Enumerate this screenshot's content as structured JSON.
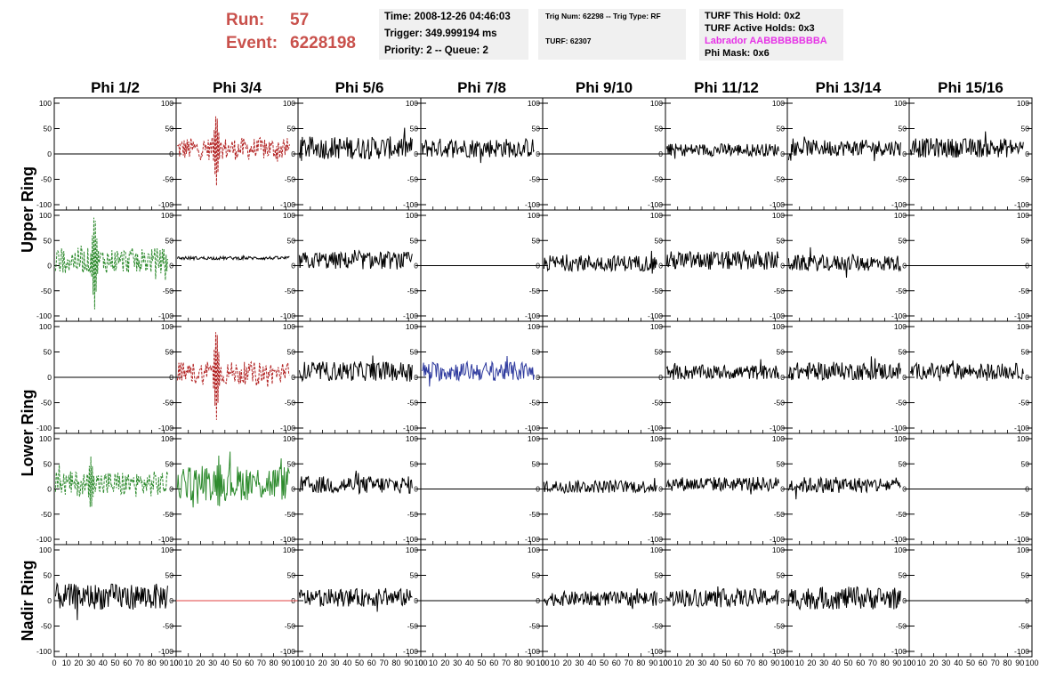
{
  "header": {
    "run_label": "Run:",
    "run_value": "57",
    "event_label": "Event:",
    "event_value": "6228198",
    "time": "Time: 2008-12-26 04:46:03",
    "trigger": "Trigger: 349.999194 ms",
    "priority": "Priority: 2 -- Queue: 2",
    "trig_num": "Trig Num: 62298 -- Trig Type: RF",
    "turf": "TURF: 62307",
    "turf_this_hold": "TURF This Hold: 0x2",
    "turf_active_holds": "TURF Active Holds: 0x3",
    "labrador": "Labrador AABBBBBBBBA",
    "phi_mask": "Phi Mask: 0x6"
  },
  "colors": {
    "run_text": "#c9514c",
    "labrador_text": "#e633e6",
    "info_background": "#f0f0f0",
    "trace_black": "#000000",
    "trace_red": "#b22222",
    "trace_green": "#2e8b2e",
    "trace_blue": "#2e3a9e",
    "flat_red": "#e04040"
  },
  "chart_data": {
    "type": "line",
    "columns": [
      "Phi 1/2",
      "Phi 3/4",
      "Phi 5/6",
      "Phi 7/8",
      "Phi 9/10",
      "Phi 11/12",
      "Phi 13/14",
      "Phi 15/16"
    ],
    "row_groups": [
      "Upper Ring",
      "Lower Ring",
      "Nadir Ring"
    ],
    "xlim": [
      0,
      100
    ],
    "ylim": [
      -100,
      100
    ],
    "y_ticks": [
      "100",
      "50",
      "0",
      "-50",
      "-100"
    ],
    "x_ticks": [
      "0",
      "10",
      "20",
      "30",
      "40",
      "50",
      "60",
      "70",
      "80",
      "90",
      "100"
    ],
    "panels": [
      {
        "row": 0,
        "col": 0,
        "amplitude": 0,
        "style": "flat",
        "color": "black"
      },
      {
        "row": 0,
        "col": 1,
        "amplitude": 14,
        "style": "dashed",
        "color": "red",
        "offset": 10,
        "spike_x": 33,
        "spike_amp": 75
      },
      {
        "row": 0,
        "col": 2,
        "amplitude": 14,
        "style": "solid",
        "color": "black",
        "offset": 12
      },
      {
        "row": 0,
        "col": 3,
        "amplitude": 12,
        "style": "solid",
        "color": "black",
        "offset": 12
      },
      {
        "row": 0,
        "col": 4,
        "amplitude": 0,
        "style": "flat",
        "color": "black"
      },
      {
        "row": 0,
        "col": 5,
        "amplitude": 8,
        "style": "solid",
        "color": "black",
        "offset": 8
      },
      {
        "row": 0,
        "col": 6,
        "amplitude": 10,
        "style": "solid",
        "color": "black",
        "offset": 12
      },
      {
        "row": 0,
        "col": 7,
        "amplitude": 12,
        "style": "solid",
        "color": "black",
        "offset": 12
      },
      {
        "row": 1,
        "col": 0,
        "amplitude": 16,
        "style": "dashed",
        "color": "green",
        "offset": 10,
        "spike_x": 33,
        "spike_amp": 100
      },
      {
        "row": 1,
        "col": 1,
        "amplitude": 2,
        "style": "solid",
        "color": "black",
        "offset": 15
      },
      {
        "row": 1,
        "col": 2,
        "amplitude": 11,
        "style": "solid",
        "color": "black",
        "offset": 10
      },
      {
        "row": 1,
        "col": 3,
        "amplitude": 0,
        "style": "flat",
        "color": "black"
      },
      {
        "row": 1,
        "col": 4,
        "amplitude": 10,
        "style": "solid",
        "color": "black",
        "offset": 5
      },
      {
        "row": 1,
        "col": 5,
        "amplitude": 12,
        "style": "solid",
        "color": "black",
        "offset": 10
      },
      {
        "row": 1,
        "col": 6,
        "amplitude": 10,
        "style": "solid",
        "color": "black",
        "offset": 5
      },
      {
        "row": 1,
        "col": 7,
        "amplitude": 0,
        "style": "flat",
        "color": "black"
      },
      {
        "row": 2,
        "col": 0,
        "amplitude": 0,
        "style": "flat",
        "color": "black"
      },
      {
        "row": 2,
        "col": 1,
        "amplitude": 14,
        "style": "dashed",
        "color": "red",
        "offset": 8,
        "spike_x": 33,
        "spike_amp": 95
      },
      {
        "row": 2,
        "col": 2,
        "amplitude": 12,
        "style": "solid",
        "color": "black",
        "offset": 12
      },
      {
        "row": 2,
        "col": 3,
        "amplitude": 12,
        "style": "solid",
        "color": "blue",
        "offset": 12
      },
      {
        "row": 2,
        "col": 4,
        "amplitude": 0,
        "style": "flat",
        "color": "black"
      },
      {
        "row": 2,
        "col": 5,
        "amplitude": 9,
        "style": "solid",
        "color": "black",
        "offset": 10
      },
      {
        "row": 2,
        "col": 6,
        "amplitude": 11,
        "style": "solid",
        "color": "black",
        "offset": 12
      },
      {
        "row": 2,
        "col": 7,
        "amplitude": 10,
        "style": "solid",
        "color": "black",
        "offset": 12
      },
      {
        "row": 3,
        "col": 0,
        "amplitude": 16,
        "style": "dashed",
        "color": "green",
        "offset": 10,
        "spike_x": 30,
        "spike_amp": 55
      },
      {
        "row": 3,
        "col": 1,
        "amplitude": 22,
        "style": "solid",
        "color": "green",
        "offset": 12,
        "spike_x": 35,
        "spike_amp": 55
      },
      {
        "row": 3,
        "col": 2,
        "amplitude": 11,
        "style": "solid",
        "color": "black",
        "offset": 8
      },
      {
        "row": 3,
        "col": 3,
        "amplitude": 0,
        "style": "flat",
        "color": "black"
      },
      {
        "row": 3,
        "col": 4,
        "amplitude": 8,
        "style": "solid",
        "color": "black",
        "offset": 5
      },
      {
        "row": 3,
        "col": 5,
        "amplitude": 9,
        "style": "solid",
        "color": "black",
        "offset": 10
      },
      {
        "row": 3,
        "col": 6,
        "amplitude": 10,
        "style": "solid",
        "color": "black",
        "offset": 8
      },
      {
        "row": 3,
        "col": 7,
        "amplitude": 0,
        "style": "flat",
        "color": "black"
      },
      {
        "row": 4,
        "col": 0,
        "amplitude": 16,
        "style": "solid",
        "color": "black",
        "offset": 8
      },
      {
        "row": 4,
        "col": 1,
        "amplitude": 0,
        "style": "flat",
        "color": "redflat"
      },
      {
        "row": 4,
        "col": 2,
        "amplitude": 11,
        "style": "solid",
        "color": "black",
        "offset": 6
      },
      {
        "row": 4,
        "col": 3,
        "amplitude": 0,
        "style": "flat",
        "color": "black"
      },
      {
        "row": 4,
        "col": 4,
        "amplitude": 9,
        "style": "solid",
        "color": "black",
        "offset": 4
      },
      {
        "row": 4,
        "col": 5,
        "amplitude": 11,
        "style": "solid",
        "color": "black",
        "offset": 6
      },
      {
        "row": 4,
        "col": 6,
        "amplitude": 14,
        "style": "solid",
        "color": "black",
        "offset": 5
      },
      {
        "row": 4,
        "col": 7,
        "amplitude": 0,
        "style": "flat",
        "color": "black"
      }
    ]
  }
}
